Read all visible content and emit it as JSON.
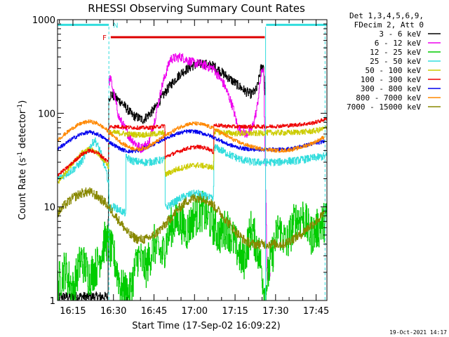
{
  "chart_data": {
    "type": "line",
    "title": "RHESSI Observing Summary Count Rates",
    "xlabel": "Start Time (17-Sep-02 16:09:22)",
    "ylabel_main": "Count Rate (s",
    "ylabel_sup1": "-1",
    "ylabel_mid": " detector",
    "ylabel_sup2": "-1",
    "ylabel_end": ")",
    "y_scale": "log",
    "ylim": [
      1,
      1000
    ],
    "y_ticks": [
      1,
      10,
      100,
      1000
    ],
    "y_tick_labels": [
      "1",
      "10",
      "100",
      "1000"
    ],
    "x_unit": "minutes of day (UT)",
    "xlim": [
      969.3,
      1069
    ],
    "x_ticks": [
      975,
      990,
      1005,
      1020,
      1035,
      1050,
      1065
    ],
    "x_tick_labels": [
      "16:15",
      "16:30",
      "16:45",
      "17:00",
      "17:15",
      "17:30",
      "17:45"
    ],
    "legend_header": [
      "Det 1,3,4,5,6,9,",
      "FDecim 2, Att 0"
    ],
    "legend_position": "outside-right",
    "timestamp": "19-Oct-2021 14:17",
    "markers": {
      "flags": [
        {
          "label": "F",
          "color": "#dd0000",
          "x_start": 989,
          "x_end": 1046,
          "level": 650
        },
        {
          "label": "N",
          "color": "#33dddd",
          "x_start": 1046.5,
          "x_end": 1069,
          "level": 880
        }
      ],
      "night_start_bar": {
        "color": "#33dddd",
        "x_start": 969.3,
        "x_end": 988.3,
        "level": 880
      },
      "vlines": [
        {
          "x": 988.3,
          "color": "#33dddd",
          "style": "dashed"
        },
        {
          "x": 1046.3,
          "color": "#33dddd",
          "style": "solid"
        },
        {
          "x": 1068.3,
          "color": "#33dddd",
          "style": "dashed"
        }
      ]
    },
    "series": [
      {
        "name": "3 - 6 keV",
        "color": "#000000",
        "x": [
          969.3,
          983,
          987.9,
          988.2,
          989,
          993,
          997,
          1001,
          1005,
          1008,
          1011,
          1015,
          1019,
          1023,
          1027,
          1031,
          1035,
          1039,
          1041,
          1043,
          1044.5,
          1045.5,
          1046.2
        ],
        "y": [
          1.1,
          1.1,
          1.1,
          140,
          160,
          130,
          95,
          85,
          110,
          150,
          200,
          270,
          320,
          340,
          320,
          260,
          210,
          170,
          160,
          180,
          300,
          320,
          150
        ]
      },
      {
        "name": "6 - 12 keV",
        "color": "#ee00ee",
        "x": [
          988.2,
          988.8,
          992,
          996,
          1000,
          1003,
          1005,
          1008,
          1011,
          1015,
          1019,
          1023,
          1027,
          1031,
          1034,
          1036,
          1039,
          1041,
          1043,
          1044.5,
          1045.5,
          1046.4,
          1046.8,
          1048
        ],
        "y": [
          210,
          240,
          90,
          55,
          42,
          48,
          80,
          200,
          380,
          400,
          350,
          330,
          300,
          200,
          120,
          70,
          60,
          65,
          110,
          250,
          320,
          10,
          1.8,
          1.8
        ]
      },
      {
        "name": "12 - 25 keV",
        "color": "#00cc00",
        "x": [
          969.3,
          972,
          975,
          978,
          981,
          984,
          987,
          990,
          993,
          996,
          999,
          1002,
          1005,
          1008,
          1011,
          1014,
          1017,
          1020,
          1023,
          1026,
          1029,
          1032,
          1035,
          1038,
          1041,
          1044,
          1046,
          1048,
          1051,
          1054,
          1057,
          1060,
          1063,
          1066,
          1069
        ],
        "y": [
          1.5,
          2.2,
          1.3,
          2.8,
          1.8,
          2.4,
          4.5,
          3.0,
          1.3,
          1.2,
          3.0,
          2.2,
          4.0,
          3.0,
          6.0,
          7.5,
          5.5,
          8.0,
          9.0,
          7.0,
          5.0,
          6.0,
          4.0,
          2.5,
          6.0,
          3.0,
          1.2,
          2.5,
          6.0,
          4.0,
          7.0,
          8.0,
          5.0,
          6.0,
          7.5
        ]
      },
      {
        "name": "25 - 50 keV",
        "color": "#33dddd",
        "x": [
          969.3,
          972,
          975,
          978,
          981,
          983,
          985,
          987,
          988.2,
          988.3,
          990,
          993,
          994.5,
          994.6,
          997,
          1000,
          1003,
          1006,
          1009,
          1009.1,
          1012,
          1015,
          1018,
          1021,
          1024,
          1027,
          1027.1,
          1030,
          1033,
          1036,
          1039,
          1042,
          1045,
          1048,
          1051,
          1054,
          1057,
          1060,
          1063,
          1066,
          1069
        ],
        "y": [
          20,
          22,
          25,
          30,
          42,
          52,
          40,
          25,
          18,
          9.5,
          10,
          9,
          8.5,
          34,
          31,
          30,
          30,
          31,
          32,
          9.8,
          11,
          12.5,
          13.5,
          14,
          13,
          12,
          44,
          40,
          36,
          33,
          31,
          30,
          30,
          30,
          30,
          31,
          31,
          32,
          33,
          34,
          35
        ]
      },
      {
        "name": "50 - 100 keV",
        "color": "#cccc00",
        "x": [
          969.3,
          972,
          975,
          978,
          981,
          984,
          987,
          988.2,
          988.3,
          991,
          995,
          999,
          1003,
          1007,
          1009,
          1009.1,
          1013,
          1017,
          1021,
          1025,
          1027,
          1027.1,
          1031,
          1035,
          1039,
          1043,
          1047,
          1051,
          1055,
          1059,
          1063,
          1066,
          1069
        ],
        "y": [
          18,
          23,
          30,
          37,
          41,
          38,
          30,
          27,
          62,
          62,
          60,
          59,
          59,
          61,
          62,
          22,
          25,
          27,
          28,
          27,
          26,
          64,
          62,
          61,
          61,
          61,
          62,
          62,
          62,
          63,
          64,
          66,
          70
        ]
      },
      {
        "name": "100 - 300 keV",
        "color": "#ee0000",
        "x": [
          969.3,
          972,
          975,
          978,
          981,
          984,
          987,
          988.2,
          988.3,
          991,
          995,
          999,
          1003,
          1007,
          1009,
          1009.1,
          1013,
          1017,
          1021,
          1025,
          1027,
          1027.1,
          1031,
          1035,
          1039,
          1043,
          1047,
          1051,
          1055,
          1059,
          1063,
          1066,
          1069
        ],
        "y": [
          22,
          25,
          30,
          36,
          40,
          38,
          32,
          30,
          72,
          72,
          71,
          70,
          70,
          72,
          74,
          34,
          38,
          42,
          44,
          42,
          38,
          75,
          73,
          72,
          72,
          72,
          72,
          73,
          74,
          76,
          78,
          82,
          88
        ]
      },
      {
        "name": "300 - 800 keV",
        "color": "#0000ee",
        "x": [
          969.3,
          972,
          975,
          978,
          981,
          984,
          987,
          990,
          993,
          996,
          999,
          1002,
          1005,
          1008,
          1011,
          1014,
          1017,
          1020,
          1023,
          1026,
          1029,
          1032,
          1035,
          1038,
          1041,
          1044,
          1047,
          1050,
          1053,
          1056,
          1059,
          1062,
          1065,
          1068
        ],
        "y": [
          42,
          47,
          54,
          60,
          63,
          60,
          53,
          46,
          41,
          39,
          40,
          43,
          47,
          52,
          57,
          61,
          64,
          64,
          61,
          57,
          52,
          47,
          44,
          42,
          41,
          41,
          41,
          41,
          41,
          42,
          44,
          46,
          48,
          50
        ]
      },
      {
        "name": "800 - 7000 keV",
        "color": "#ff8800",
        "x": [
          969.3,
          972,
          975,
          978,
          981,
          984,
          987,
          990,
          993,
          996,
          999,
          1002,
          1005,
          1008,
          1011,
          1014,
          1017,
          1020,
          1023,
          1026,
          1029,
          1032,
          1035,
          1038,
          1041,
          1044,
          1047,
          1050,
          1053,
          1056,
          1059,
          1062,
          1065,
          1068
        ],
        "y": [
          52,
          60,
          70,
          78,
          82,
          78,
          68,
          57,
          48,
          43,
          41,
          43,
          48,
          55,
          62,
          70,
          76,
          78,
          76,
          71,
          64,
          57,
          51,
          47,
          44,
          42,
          41,
          40,
          40,
          41,
          43,
          46,
          50,
          56
        ]
      },
      {
        "name": "7000 - 15000 keV",
        "color": "#888800",
        "x": [
          969.3,
          972,
          975,
          978,
          981,
          984,
          987,
          990,
          993,
          996,
          999,
          1002,
          1005,
          1008,
          1011,
          1014,
          1017,
          1020,
          1023,
          1026,
          1029,
          1032,
          1035,
          1038,
          1041,
          1044,
          1047,
          1050,
          1053,
          1056,
          1059,
          1062,
          1065,
          1068
        ],
        "y": [
          8.5,
          10.5,
          12.5,
          14,
          14.5,
          13,
          11,
          8.5,
          6.5,
          5,
          4.5,
          4.5,
          5,
          6,
          7.5,
          9.5,
          11.5,
          12.5,
          12.5,
          11,
          9,
          7,
          5.5,
          4.5,
          4,
          4,
          4,
          4,
          4,
          4.5,
          5,
          6,
          7,
          8.5
        ]
      }
    ]
  }
}
